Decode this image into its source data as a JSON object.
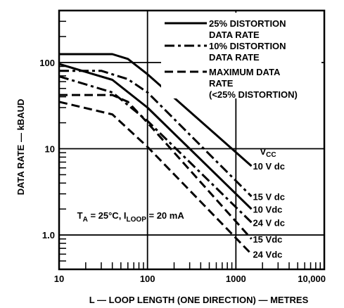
{
  "chart_data": {
    "type": "line",
    "title": "",
    "xlabel": "L — LOOP LENGTH (ONE DIRECTION) — METRES",
    "ylabel": "DATA RATE — kBAUD",
    "x_scale": "log",
    "y_scale": "log",
    "xlim": [
      10,
      10000
    ],
    "ylim": [
      0.4,
      400
    ],
    "x_ticks": [
      {
        "value": 10,
        "label": "10"
      },
      {
        "value": 100,
        "label": "100"
      },
      {
        "value": 1000,
        "label": "1000"
      },
      {
        "value": 10000,
        "label": "10,000"
      }
    ],
    "y_ticks": [
      {
        "value": 1,
        "label": "1.0"
      },
      {
        "value": 10,
        "label": "10"
      },
      {
        "value": 100,
        "label": "100"
      }
    ],
    "grid": true,
    "legend": {
      "placement": "top-right",
      "entries": [
        {
          "style": "solid",
          "label_lines": [
            "25% DISTORTION",
            "DATA RATE"
          ]
        },
        {
          "style": "dash-dot",
          "label_lines": [
            "10% DISTORTION",
            "DATA RATE"
          ]
        },
        {
          "style": "dashed",
          "label_lines": [
            "MAXIMUM DATA",
            "RATE",
            "(<25% DISTORTION)"
          ]
        }
      ]
    },
    "annotations": {
      "vcc_header": "V",
      "vcc_header_sub": "CC",
      "conditions": {
        "ta": "T",
        "ta_sub": "A",
        "ta_rest": " = 25°C, I",
        "iloop_sub": "LOOP",
        "iloop_rest": " = 20 mA"
      }
    },
    "series": [
      {
        "curve_label": "10 V dc",
        "style": "solid",
        "points": [
          [
            10,
            125
          ],
          [
            40,
            125
          ],
          [
            60,
            110
          ],
          [
            100,
            73
          ],
          [
            1500,
            6.3
          ]
        ]
      },
      {
        "curve_label": "15 V dc",
        "style": "dash-dot",
        "points": [
          [
            10,
            80
          ],
          [
            30,
            80
          ],
          [
            60,
            64
          ],
          [
            100,
            45
          ],
          [
            1500,
            2.8
          ]
        ]
      },
      {
        "curve_label": "10 Vdc",
        "style": "solid",
        "points": [
          [
            10,
            96
          ],
          [
            40,
            63
          ],
          [
            100,
            30
          ],
          [
            1500,
            2.0
          ]
        ]
      },
      {
        "curve_label": "24 V dc",
        "style": "dash-dot",
        "points": [
          [
            10,
            69
          ],
          [
            40,
            45
          ],
          [
            100,
            21
          ],
          [
            1500,
            1.4
          ]
        ]
      },
      {
        "curve_label": "15 Vdc",
        "style": "dashed",
        "points": [
          [
            10,
            42
          ],
          [
            40,
            42
          ],
          [
            60,
            35
          ],
          [
            100,
            20
          ],
          [
            1500,
            0.9
          ]
        ]
      },
      {
        "curve_label": "24 Vdc",
        "style": "dashed",
        "points": [
          [
            10,
            35
          ],
          [
            40,
            25
          ],
          [
            100,
            10.5
          ],
          [
            1500,
            0.6
          ]
        ]
      }
    ]
  }
}
